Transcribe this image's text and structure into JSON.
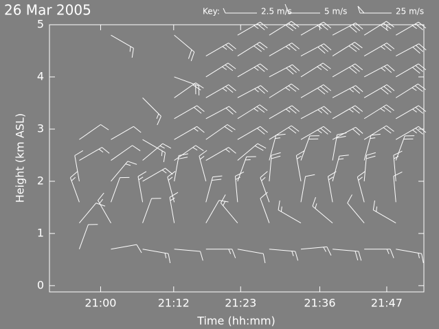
{
  "chart_data": {
    "type": "barb",
    "title": "26 Mar 2005",
    "key_title": "Key:",
    "key": [
      {
        "speed": 2.5,
        "label": "2.5 m/s"
      },
      {
        "speed": 5,
        "label": "5 m/s"
      },
      {
        "speed": 25,
        "label": "25 m/s"
      }
    ],
    "x_label": "Time (hh:mm)",
    "y_label": "Height (km ASL)",
    "xlim": [
      1251.6,
      1313.1
    ],
    "xticks": [
      {
        "value": 1260,
        "label": "21:00"
      },
      {
        "value": 1272,
        "label": "21:12"
      },
      {
        "value": 1283,
        "label": "21:23"
      },
      {
        "value": 1296,
        "label": "21:36"
      },
      {
        "value": 1307,
        "label": "21:47"
      }
    ],
    "ylim": [
      -0.12,
      5.0
    ],
    "yticks": [
      0,
      1,
      2,
      3,
      4,
      5
    ],
    "color": "#ffffff",
    "x": [
      1256.5,
      1261.7,
      1266.9,
      1272.1,
      1277.3,
      1282.5,
      1287.7,
      1292.9,
      1298.1,
      1303.3,
      1308.5
    ],
    "heights": [
      0.7,
      1.2,
      1.6,
      2.0,
      2.4,
      2.8,
      3.2,
      3.6,
      4.0,
      4.4,
      4.8
    ],
    "speed": [
      [
        5,
        5,
        7.5,
        5,
        7.5,
        5,
        7.5,
        7.5,
        10,
        7.5,
        7.5
      ],
      [
        5,
        7.5,
        5,
        7.5,
        5,
        7.5,
        5,
        7.5,
        7.5,
        5,
        7.5
      ],
      [
        7.5,
        5,
        7.5,
        7.5,
        10,
        7.5,
        7.5,
        5,
        7.5,
        7.5,
        5
      ],
      [
        5,
        7.5,
        7.5,
        10,
        7.5,
        7.5,
        10,
        7.5,
        7.5,
        10,
        7.5
      ],
      [
        7.5,
        5,
        7.5,
        7.5,
        7.5,
        10,
        7.5,
        10,
        10,
        7.5,
        10
      ],
      [
        5,
        5,
        7.5,
        7.5,
        10,
        10,
        10,
        12.5,
        10,
        10,
        12.5
      ],
      [
        null,
        null,
        null,
        10,
        10,
        12.5,
        12.5,
        12.5,
        12.5,
        12.5,
        12.5
      ],
      [
        null,
        null,
        7.5,
        10,
        12.5,
        12.5,
        12.5,
        15,
        12.5,
        15,
        12.5
      ],
      [
        null,
        null,
        null,
        10,
        12.5,
        12.5,
        15,
        12.5,
        15,
        12.5,
        15
      ],
      [
        null,
        null,
        null,
        null,
        12.5,
        15,
        12.5,
        15,
        15,
        12.5,
        15
      ],
      [
        null,
        7.5,
        null,
        10,
        null,
        12.5,
        15,
        12.5,
        15,
        15,
        12.5
      ]
    ],
    "direction": [
      [
        20,
        80,
        100,
        95,
        90,
        100,
        95,
        85,
        95,
        90,
        100
      ],
      [
        40,
        330,
        20,
        350,
        30,
        320,
        340,
        300,
        310,
        320,
        300
      ],
      [
        340,
        20,
        350,
        345,
        15,
        355,
        340,
        10,
        350,
        345,
        355
      ],
      [
        350,
        40,
        60,
        10,
        345,
        20,
        5,
        350,
        15,
        5,
        355
      ],
      [
        60,
        55,
        50,
        55,
        60,
        50,
        15,
        20,
        10,
        15,
        20
      ],
      [
        55,
        60,
        120,
        60,
        55,
        60,
        58,
        60,
        62,
        58,
        60
      ],
      [
        null,
        null,
        null,
        60,
        62,
        58,
        60,
        62,
        60,
        58,
        60
      ],
      [
        null,
        null,
        135,
        55,
        60,
        62,
        58,
        60,
        62,
        60,
        58
      ],
      [
        null,
        null,
        null,
        110,
        58,
        60,
        62,
        58,
        60,
        62,
        60
      ],
      [
        null,
        null,
        null,
        null,
        60,
        58,
        60,
        62,
        58,
        60,
        62
      ],
      [
        null,
        120,
        null,
        130,
        null,
        60,
        58,
        60,
        62,
        58,
        60
      ]
    ]
  }
}
